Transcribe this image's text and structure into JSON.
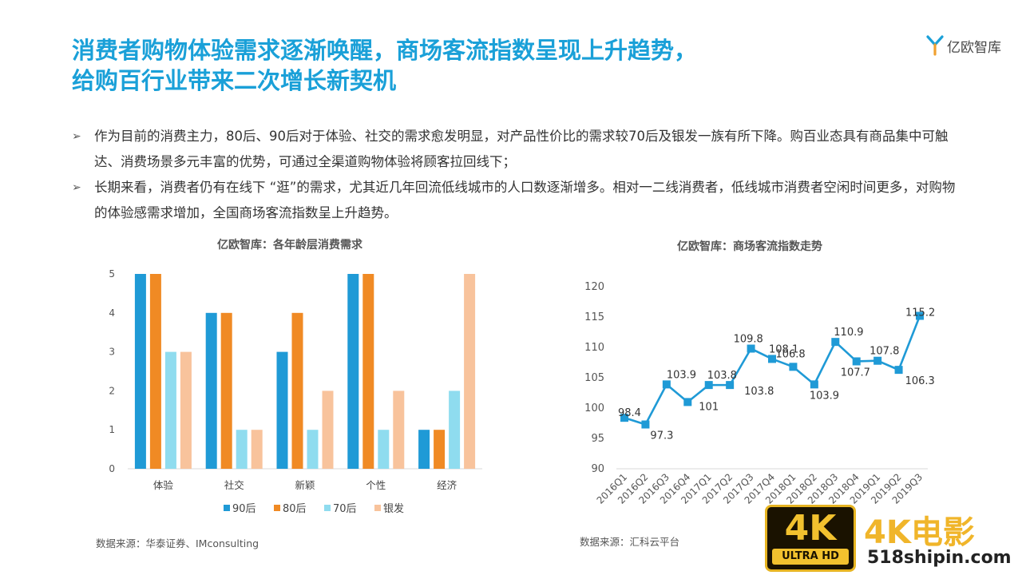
{
  "title": {
    "line1": "消费者购物体验需求逐渐唤醒，商场客流指数呈现上升趋势，",
    "line2": "给购百行业带来二次增长新契机"
  },
  "logo": {
    "text": "亿欧智库",
    "color": "#1aa0d8"
  },
  "bullets": [
    {
      "marker": "➢",
      "text": "作为目前的消费主力，80后、90后对于体验、社交的需求愈发明显，对产品性价比的需求较70后及银发一族有所下降。购百业态具有商品集中可触达、消费场景多元丰富的优势，可通过全渠道购物体验将顾客拉回线下；"
    },
    {
      "marker": "➢",
      "text": "长期来看，消费者仍有在线下 “逛”的需求，尤其近几年回流低线城市的人口数逐渐增多。相对一二线消费者，低线城市消费者空闲时间更多，对购物的体验感需求增加，全国商场客流指数呈上升趋势。"
    }
  ],
  "chart_data": [
    {
      "type": "bar",
      "title": "亿欧智库：各年龄层消费需求",
      "categories": [
        "体验",
        "社交",
        "新颖",
        "个性",
        "经济"
      ],
      "series": [
        {
          "name": "90后",
          "values": [
            5,
            4,
            3,
            5,
            1
          ],
          "color": "#1f9ad6"
        },
        {
          "name": "80后",
          "values": [
            5,
            4,
            4,
            5,
            1
          ],
          "color": "#f08a24"
        },
        {
          "name": "70后",
          "values": [
            3,
            1,
            1,
            1,
            2
          ],
          "color": "#8fdcef"
        },
        {
          "name": "银发",
          "values": [
            3,
            1,
            2,
            2,
            5
          ],
          "color": "#f8c39c"
        }
      ],
      "yticks": [
        0,
        1,
        2,
        3,
        4,
        5
      ],
      "ylim": [
        0,
        5
      ],
      "legend": "bottom",
      "grid": false
    },
    {
      "type": "line",
      "title": "亿欧智库：商场客流指数走势",
      "x": [
        "2016Q1",
        "2016Q2",
        "2016Q3",
        "2016Q4",
        "2017Q1",
        "2017Q2",
        "2017Q3",
        "2017Q4",
        "2018Q1",
        "2018Q2",
        "2018Q3",
        "2018Q4",
        "2019Q1",
        "2019Q2",
        "2019Q3"
      ],
      "values": [
        98.4,
        97.3,
        103.9,
        101,
        103.8,
        103.8,
        109.8,
        108.1,
        106.8,
        103.9,
        110.9,
        107.7,
        107.8,
        106.3,
        115.2
      ],
      "labels": [
        "98.4",
        "97.3",
        "103.9",
        "101",
        "103.8",
        "103.8",
        "109.8",
        "108.1",
        "106.8",
        "103.9",
        "110.9",
        "107.7",
        "107.8",
        "106.3",
        "115.2"
      ],
      "yticks": [
        90,
        95,
        100,
        105,
        110,
        115,
        120
      ],
      "ylim": [
        90,
        120
      ],
      "color": "#1f9ad6",
      "grid": false
    }
  ],
  "sources": {
    "left": "数据来源：华泰证券、IMconsulting",
    "right": "数据来源：汇科云平台"
  },
  "watermark": {
    "badge": "4K",
    "badge_sub": "ULTRA HD",
    "brand": "4K电影",
    "site": "518shipin.com"
  }
}
